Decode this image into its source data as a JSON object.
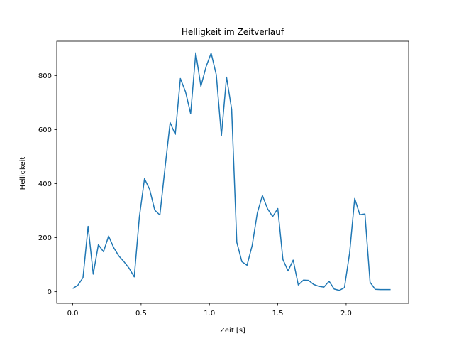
{
  "chart_data": {
    "type": "line",
    "title": "Helligkeit im Zeitverlauf",
    "xlabel": "Zeit [s]",
    "ylabel": "Helligkeit",
    "xlim": [
      -0.117,
      2.457
    ],
    "ylim": [
      -43,
      927
    ],
    "xticks": [
      0.0,
      0.5,
      1.0,
      1.5,
      2.0
    ],
    "xtick_labels": [
      "0.0",
      "0.5",
      "1.0",
      "1.5",
      "2.0"
    ],
    "yticks": [
      0,
      200,
      400,
      600,
      800
    ],
    "ytick_labels": [
      "0",
      "200",
      "400",
      "600",
      "800"
    ],
    "grid": false,
    "line_color": "#1f77b4",
    "series": [
      {
        "x": [
          0.0,
          0.0375,
          0.075,
          0.1125,
          0.15,
          0.1875,
          0.225,
          0.2625,
          0.3,
          0.3375,
          0.375,
          0.4125,
          0.45,
          0.4875,
          0.525,
          0.5625,
          0.6,
          0.6375,
          0.675,
          0.7125,
          0.75,
          0.7875,
          0.825,
          0.8625,
          0.9,
          0.9375,
          0.975,
          1.0125,
          1.05,
          1.0875,
          1.125,
          1.1625,
          1.2,
          1.2375,
          1.275,
          1.3125,
          1.35,
          1.3875,
          1.425,
          1.4625,
          1.5,
          1.5375,
          1.575,
          1.6125,
          1.65,
          1.6875,
          1.725,
          1.7625,
          1.8,
          1.8375,
          1.875,
          1.9125,
          1.95,
          1.9875,
          2.025,
          2.0625,
          2.1,
          2.1375,
          2.175,
          2.2125,
          2.25,
          2.2875,
          2.325
        ],
        "values": [
          12,
          24,
          52,
          242,
          65,
          174,
          148,
          206,
          163,
          132,
          111,
          87,
          55,
          277,
          418,
          379,
          302,
          284,
          458,
          626,
          582,
          789,
          740,
          659,
          884,
          760,
          832,
          883,
          803,
          578,
          794,
          675,
          183,
          111,
          98,
          171,
          291,
          356,
          307,
          278,
          308,
          119,
          77,
          117,
          25,
          43,
          42,
          27,
          20,
          17,
          39,
          10,
          5,
          15,
          142,
          345,
          285,
          288,
          35,
          9,
          8,
          8,
          8
        ]
      }
    ]
  }
}
